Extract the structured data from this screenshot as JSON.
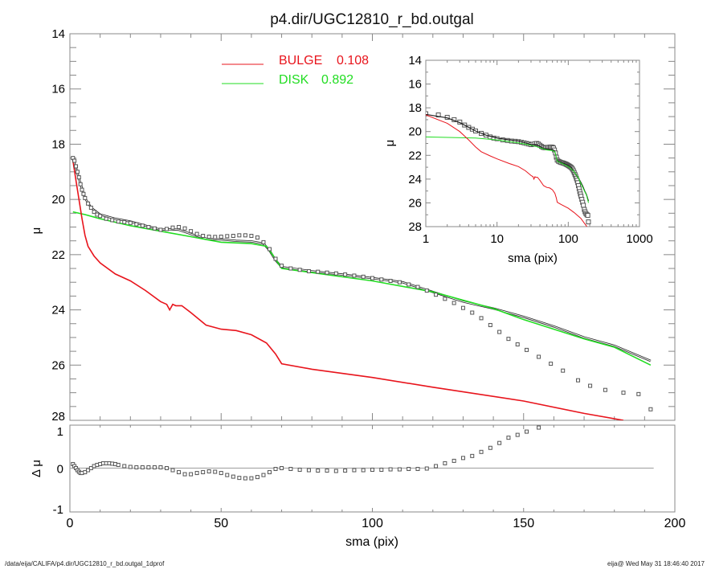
{
  "chart_data": [
    {
      "type": "line",
      "title": "p4.dir/UGC12810_r_bd.outgal",
      "xlabel": "",
      "ylabel": "μ",
      "xlim": [
        0,
        200
      ],
      "ylim": [
        28,
        14
      ],
      "y_inverted": true,
      "xticks": [
        "0",
        "50",
        "100",
        "150",
        "200"
      ],
      "yticks": [
        "14",
        "16",
        "18",
        "20",
        "22",
        "24",
        "26",
        "28"
      ],
      "legend_position": "top-center",
      "legend": [
        {
          "label": "BULGE",
          "value": "0.108",
          "color": "#e8141c"
        },
        {
          "label": "DISK",
          "value": "0.892",
          "color": "#22dd22"
        }
      ],
      "observed": {
        "color": "#555555",
        "sma": [
          1,
          1.5,
          2,
          2.5,
          3,
          3.5,
          4,
          4.5,
          5,
          6,
          7,
          8,
          9,
          10,
          12,
          14,
          16,
          18,
          20,
          22,
          24,
          26,
          28,
          30,
          32,
          34,
          36,
          38,
          40,
          42,
          44,
          46,
          48,
          50,
          52,
          54,
          56,
          58,
          60,
          62,
          64,
          66,
          68,
          70,
          73,
          76,
          79,
          82,
          85,
          88,
          91,
          94,
          97,
          100,
          103,
          106,
          109,
          112,
          115,
          118,
          121,
          124,
          127,
          130,
          133,
          136,
          139,
          142,
          145,
          148,
          151,
          155,
          159,
          163,
          168,
          172,
          177,
          183,
          188,
          192
        ],
        "mu": [
          18.5,
          18.6,
          18.8,
          19.0,
          19.2,
          19.45,
          19.65,
          19.8,
          19.95,
          20.15,
          20.3,
          20.45,
          20.55,
          20.6,
          20.7,
          20.75,
          20.8,
          20.82,
          20.85,
          20.9,
          20.95,
          21.0,
          21.05,
          21.1,
          21.07,
          21.02,
          21.0,
          21.05,
          21.15,
          21.25,
          21.32,
          21.35,
          21.36,
          21.35,
          21.33,
          21.32,
          21.3,
          21.3,
          21.32,
          21.38,
          21.55,
          21.8,
          22.15,
          22.4,
          22.5,
          22.55,
          22.6,
          22.62,
          22.65,
          22.68,
          22.72,
          22.76,
          22.8,
          22.85,
          22.9,
          22.95,
          23.0,
          23.08,
          23.17,
          23.3,
          23.45,
          23.6,
          23.75,
          23.93,
          24.1,
          24.3,
          24.55,
          24.8,
          25.05,
          25.25,
          25.45,
          25.7,
          25.95,
          26.2,
          26.55,
          26.75,
          26.9,
          27.0,
          27.05,
          27.6
        ]
      },
      "total_model": {
        "color": "#222222",
        "sma": [
          1,
          2,
          3,
          5,
          7,
          10,
          15,
          20,
          25,
          30,
          33,
          36,
          40,
          45,
          50,
          55,
          60,
          64,
          66,
          68,
          70,
          80,
          90,
          100,
          110,
          120,
          130,
          140,
          150,
          160,
          170,
          180,
          192
        ],
        "mu": [
          18.55,
          18.85,
          19.25,
          19.95,
          20.3,
          20.55,
          20.7,
          20.8,
          20.95,
          21.1,
          21.08,
          21.1,
          21.25,
          21.42,
          21.45,
          21.5,
          21.52,
          21.6,
          21.85,
          22.2,
          22.45,
          22.6,
          22.72,
          22.85,
          23.0,
          23.35,
          23.7,
          23.95,
          24.25,
          24.6,
          25.0,
          25.3,
          25.85
        ]
      },
      "bulge": {
        "color": "#e8141c",
        "sma": [
          1,
          2,
          3,
          4,
          5,
          6,
          8,
          10,
          15,
          20,
          25,
          30,
          32,
          33,
          34,
          35,
          37,
          40,
          45,
          50,
          55,
          60,
          65,
          68,
          70,
          80,
          100,
          120,
          150,
          170,
          183
        ],
        "mu": [
          18.6,
          19.3,
          20.0,
          20.7,
          21.3,
          21.7,
          22.05,
          22.3,
          22.7,
          22.95,
          23.3,
          23.7,
          23.8,
          24.0,
          23.8,
          23.85,
          23.85,
          24.1,
          24.55,
          24.7,
          24.75,
          24.9,
          25.2,
          25.6,
          25.95,
          26.15,
          26.45,
          26.8,
          27.3,
          27.75,
          28.0
        ]
      },
      "disk": {
        "color": "#22dd22",
        "sma": [
          1,
          5,
          10,
          20,
          30,
          40,
          50,
          60,
          65,
          67,
          70,
          80,
          100,
          120,
          140,
          150,
          160,
          170,
          180,
          192
        ],
        "mu": [
          20.45,
          20.55,
          20.7,
          20.95,
          21.15,
          21.35,
          21.55,
          21.6,
          21.7,
          22.0,
          22.5,
          22.65,
          22.95,
          23.35,
          23.95,
          24.35,
          24.7,
          25.05,
          25.35,
          26.0
        ]
      }
    },
    {
      "type": "scatter",
      "xlabel": "sma (pix)",
      "ylabel": "Δ μ",
      "xlim": [
        0,
        200
      ],
      "ylim": [
        -1.08,
        1.06
      ],
      "xticks": [
        "0",
        "50",
        "100",
        "150",
        "200"
      ],
      "yticks": [
        "-1",
        "0",
        "1"
      ],
      "reference_line": 0,
      "residual": {
        "sma": [
          1,
          1.5,
          2,
          2.5,
          3,
          3.5,
          4,
          5,
          6,
          7,
          8,
          9,
          10,
          11,
          12,
          13,
          14,
          15,
          16,
          18,
          20,
          22,
          24,
          26,
          28,
          30,
          32,
          34,
          36,
          38,
          40,
          42,
          44,
          46,
          48,
          50,
          52,
          54,
          56,
          58,
          60,
          62,
          64,
          66,
          68,
          70,
          73,
          76,
          79,
          82,
          85,
          88,
          91,
          94,
          97,
          100,
          103,
          106,
          109,
          112,
          115,
          118,
          121,
          124,
          127,
          130,
          133,
          136,
          139,
          142,
          145,
          148,
          151,
          155
        ],
        "delta": [
          0.1,
          0.05,
          0.0,
          -0.05,
          -0.09,
          -0.12,
          -0.12,
          -0.1,
          -0.05,
          0.0,
          0.05,
          0.08,
          0.1,
          0.12,
          0.12,
          0.12,
          0.11,
          0.1,
          0.08,
          0.05,
          0.03,
          0.02,
          0.02,
          0.02,
          0.02,
          0.02,
          0.0,
          -0.05,
          -0.1,
          -0.15,
          -0.15,
          -0.12,
          -0.1,
          -0.08,
          -0.09,
          -0.12,
          -0.17,
          -0.21,
          -0.24,
          -0.25,
          -0.25,
          -0.22,
          -0.17,
          -0.1,
          -0.02,
          0.0,
          -0.02,
          -0.04,
          -0.05,
          -0.06,
          -0.06,
          -0.07,
          -0.06,
          -0.05,
          -0.05,
          -0.04,
          -0.04,
          -0.03,
          -0.03,
          -0.02,
          -0.02,
          -0.01,
          0.05,
          0.12,
          0.18,
          0.25,
          0.3,
          0.4,
          0.5,
          0.62,
          0.75,
          0.82,
          0.9,
          1.0
        ]
      }
    },
    {
      "type": "line",
      "xlabel": "sma (pix)",
      "ylabel": "μ",
      "x_scale": "log",
      "xlim": [
        1,
        1000
      ],
      "ylim": [
        28,
        14
      ],
      "y_inverted": true,
      "xticks": [
        "1",
        "10",
        "100",
        "1000"
      ],
      "yticks": [
        "14",
        "16",
        "18",
        "20",
        "22",
        "24",
        "26",
        "28"
      ],
      "note": "inset shows the same observed, total, bulge and disk profiles"
    }
  ],
  "footer": {
    "left": "/data/eija/CALIFA/p4.dir/UGC12810_r_bd.outgal_1dprof",
    "right": "eija@  Wed May 31 18:46:40 2017"
  }
}
